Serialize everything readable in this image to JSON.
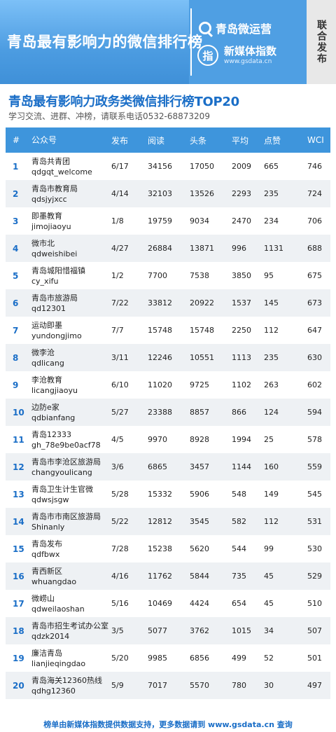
{
  "banner": {
    "title": "青岛最有影响力的微信排行榜",
    "brand_name": "青岛微运营",
    "gs_logo_text": "指",
    "gs_name": "新媒体指数",
    "gs_url": "www.gsdata.cn",
    "side_tab": "联合发布",
    "colors": {
      "banner": "#4f9fe3",
      "accent": "#1a6ec7",
      "header_row": "#3e95dc"
    }
  },
  "heading": {
    "title": "青岛最有影响力政务类微信排行榜TOP20",
    "subtitle": "学习交流、进群、冲榜，请联系电话0532-68873209"
  },
  "table": {
    "headers": {
      "rank": "#",
      "name": "公众号",
      "pub": "发布",
      "read": "阅读",
      "head": "头条",
      "avg": "平均",
      "like": "点赞",
      "wci": "WCI"
    },
    "rows": [
      {
        "rank": "1",
        "name": "青岛共青团",
        "id": "qdgqt_welcome",
        "pub": "6/17",
        "read": "34156",
        "head": "17050",
        "avg": "2009",
        "like": "665",
        "wci": "746"
      },
      {
        "rank": "2",
        "name": "青岛市教育局",
        "id": "qdsjyjxcc",
        "pub": "4/14",
        "read": "32103",
        "head": "13526",
        "avg": "2293",
        "like": "235",
        "wci": "724"
      },
      {
        "rank": "3",
        "name": "即墨教育",
        "id": "jimojiaoyu",
        "pub": "1/8",
        "read": "19759",
        "head": "9034",
        "avg": "2470",
        "like": "234",
        "wci": "706"
      },
      {
        "rank": "4",
        "name": "微市北",
        "id": "qdweishibei",
        "pub": "4/27",
        "read": "26884",
        "head": "13871",
        "avg": "996",
        "like": "1131",
        "wci": "688"
      },
      {
        "rank": "5",
        "name": "青岛城阳惜福镇",
        "id": "cy_xifu",
        "pub": "1/2",
        "read": "7700",
        "head": "7538",
        "avg": "3850",
        "like": "95",
        "wci": "675"
      },
      {
        "rank": "6",
        "name": "青岛市旅游局",
        "id": "qd12301",
        "pub": "7/22",
        "read": "33812",
        "head": "20922",
        "avg": "1537",
        "like": "145",
        "wci": "673"
      },
      {
        "rank": "7",
        "name": "运动即墨",
        "id": "yundongjimo",
        "pub": "7/7",
        "read": "15748",
        "head": "15748",
        "avg": "2250",
        "like": "112",
        "wci": "647"
      },
      {
        "rank": "8",
        "name": "微李沧",
        "id": "qdlicang",
        "pub": "3/11",
        "read": "12246",
        "head": "10551",
        "avg": "1113",
        "like": "235",
        "wci": "630"
      },
      {
        "rank": "9",
        "name": "李沧教育",
        "id": "licangjiaoyu",
        "pub": "6/10",
        "read": "11020",
        "head": "9725",
        "avg": "1102",
        "like": "263",
        "wci": "602"
      },
      {
        "rank": "10",
        "name": "边防e家",
        "id": "qdbianfang",
        "pub": "5/27",
        "read": "23388",
        "head": "8857",
        "avg": "866",
        "like": "124",
        "wci": "594"
      },
      {
        "rank": "11",
        "name": "青岛12333",
        "id": "gh_78e9be0acf78",
        "pub": "4/5",
        "read": "9970",
        "head": "8928",
        "avg": "1994",
        "like": "25",
        "wci": "578"
      },
      {
        "rank": "12",
        "name": "青岛市李沧区旅游局",
        "id": "changyoulicang",
        "pub": "3/6",
        "read": "6865",
        "head": "3457",
        "avg": "1144",
        "like": "160",
        "wci": "559"
      },
      {
        "rank": "13",
        "name": "青岛卫生计生官微",
        "id": "qdwsjsgw",
        "pub": "5/28",
        "read": "15332",
        "head": "5906",
        "avg": "548",
        "like": "149",
        "wci": "545"
      },
      {
        "rank": "14",
        "name": "青岛市市南区旅游局",
        "id": "Shinanly",
        "pub": "5/22",
        "read": "12812",
        "head": "3545",
        "avg": "582",
        "like": "112",
        "wci": "531"
      },
      {
        "rank": "15",
        "name": "青岛发布",
        "id": "qdfbwx",
        "pub": "7/28",
        "read": "15238",
        "head": "5620",
        "avg": "544",
        "like": "99",
        "wci": "530"
      },
      {
        "rank": "16",
        "name": "青西新区",
        "id": "whuangdao",
        "pub": "4/16",
        "read": "11762",
        "head": "5844",
        "avg": "735",
        "like": "45",
        "wci": "529"
      },
      {
        "rank": "17",
        "name": "微崂山",
        "id": "qdweilaoshan",
        "pub": "5/16",
        "read": "10469",
        "head": "4424",
        "avg": "654",
        "like": "45",
        "wci": "510"
      },
      {
        "rank": "18",
        "name": "青岛市招生考试办公室",
        "id": "qdzk2014",
        "pub": "3/5",
        "read": "5077",
        "head": "3762",
        "avg": "1015",
        "like": "34",
        "wci": "507"
      },
      {
        "rank": "19",
        "name": "廉洁青岛",
        "id": "lianjieqingdao",
        "pub": "5/20",
        "read": "9985",
        "head": "6856",
        "avg": "499",
        "like": "52",
        "wci": "501"
      },
      {
        "rank": "20",
        "name": "青岛海关12360热线",
        "id": "qdhg12360",
        "pub": "5/9",
        "read": "7017",
        "head": "5570",
        "avg": "780",
        "like": "30",
        "wci": "497"
      }
    ]
  },
  "footer": {
    "text": "榜单由新媒体指数提供数据支持，更多数据请到 www.gsdata.cn 查询"
  }
}
